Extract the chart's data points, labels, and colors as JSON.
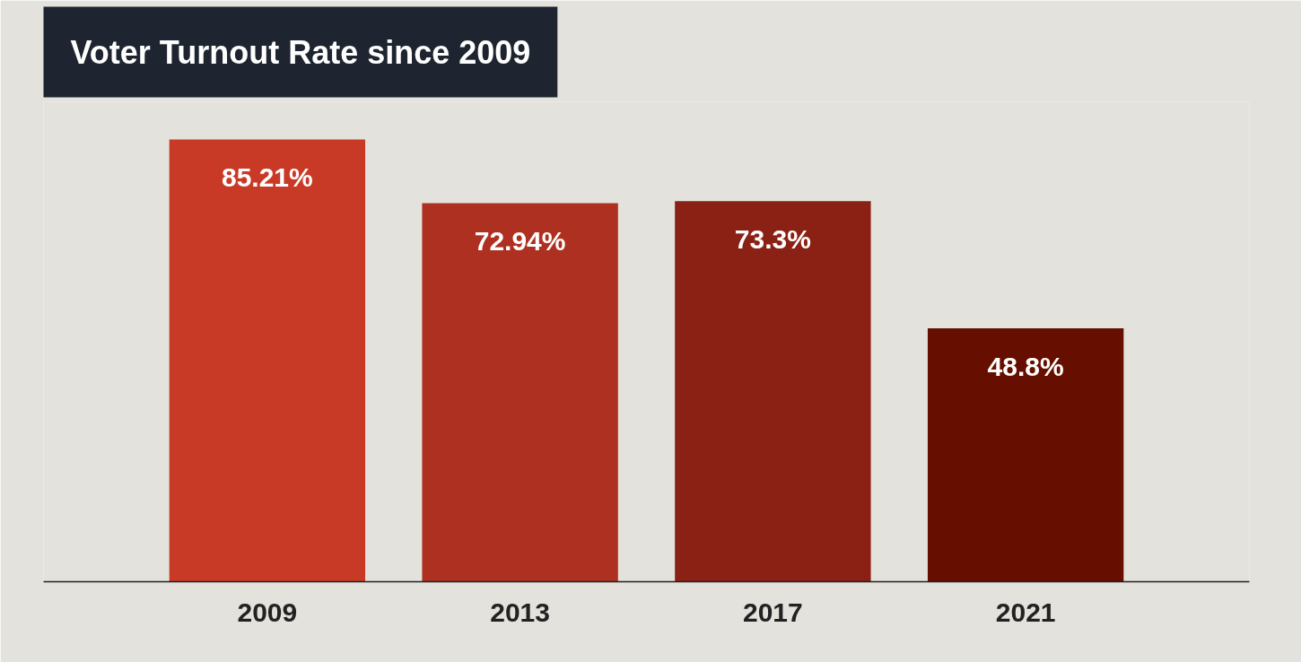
{
  "chart_data": {
    "type": "bar",
    "title": "Voter Turnout Rate since 2009",
    "categories": [
      "2009",
      "2013",
      "2017",
      "2021"
    ],
    "values": [
      85.21,
      72.94,
      73.3,
      48.8
    ],
    "colors": [
      "#c93a26",
      "#ad3020",
      "#8b2014",
      "#660f00"
    ],
    "value_labels": [
      "85.21%",
      "72.94%",
      "73.3%",
      "48.8%"
    ],
    "tick_labels": "x"
  }
}
